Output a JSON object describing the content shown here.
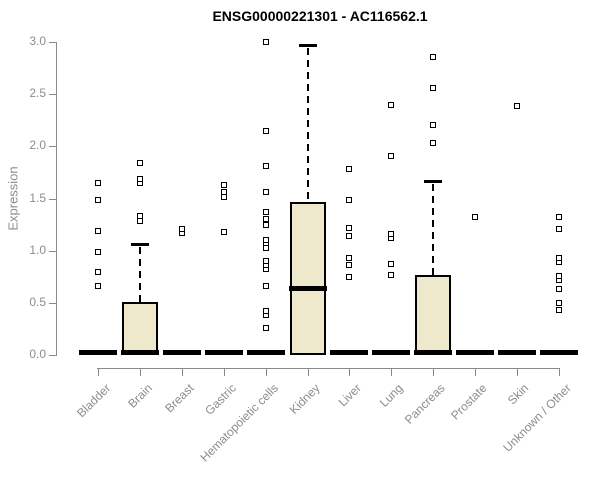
{
  "page": {
    "background": "#ffffff"
  },
  "chart_data": {
    "type": "boxplot",
    "title": "ENSG00000221301 - AC116562.1",
    "ylabel": "Expression",
    "ylim": [
      0,
      3.0
    ],
    "grid": false,
    "legend": "none",
    "yticks": [
      0.0,
      0.5,
      1.0,
      1.5,
      2.0,
      2.5,
      3.0
    ],
    "ytick_labels": [
      "0.0",
      "0.5",
      "1.0",
      "1.5",
      "2.0",
      "2.5",
      "3.0"
    ],
    "categories": [
      "Bladder",
      "Brain",
      "Breast",
      "Gastric",
      "Hematopoietic cells",
      "Kidney",
      "Liver",
      "Lung",
      "Pancreas",
      "Prostate",
      "Skin",
      "Unknown / Other"
    ],
    "series": [
      {
        "category": "Bladder",
        "q1": 0,
        "median": 0.02,
        "q3": 0.02,
        "whisker_low": 0,
        "whisker_high": 0.02,
        "outliers": [
          0.66,
          0.8,
          0.99,
          1.19,
          1.49,
          1.65
        ]
      },
      {
        "category": "Brain",
        "q1": 0,
        "median": 0.02,
        "q3": 0.51,
        "whisker_low": 0,
        "whisker_high": 1.06,
        "outliers": [
          1.28,
          1.33,
          1.65,
          1.69,
          1.84
        ]
      },
      {
        "category": "Breast",
        "q1": 0,
        "median": 0.02,
        "q3": 0.02,
        "whisker_low": 0,
        "whisker_high": 0.02,
        "outliers": [
          1.17,
          1.21
        ]
      },
      {
        "category": "Gastric",
        "q1": 0,
        "median": 0.02,
        "q3": 0.02,
        "whisker_low": 0,
        "whisker_high": 0.02,
        "outliers": [
          1.18,
          1.51,
          1.56,
          1.63
        ]
      },
      {
        "category": "Hematopoietic cells",
        "q1": 0,
        "median": 0.02,
        "q3": 0.02,
        "whisker_low": 0,
        "whisker_high": 0.02,
        "outliers": [
          0.26,
          0.38,
          0.42,
          0.66,
          0.82,
          0.86,
          0.9,
          1.03,
          1.07,
          1.1,
          1.25,
          1.3,
          1.37,
          1.56,
          1.81,
          2.15,
          3.0
        ]
      },
      {
        "category": "Kidney",
        "q1": 0,
        "median": 0.64,
        "q3": 1.47,
        "whisker_low": 0,
        "whisker_high": 2.97,
        "outliers": []
      },
      {
        "category": "Liver",
        "q1": 0,
        "median": 0.02,
        "q3": 0.02,
        "whisker_low": 0,
        "whisker_high": 0.02,
        "outliers": [
          0.75,
          0.86,
          0.93,
          1.14,
          1.22,
          1.49,
          1.78
        ]
      },
      {
        "category": "Lung",
        "q1": 0,
        "median": 0.02,
        "q3": 0.02,
        "whisker_low": 0,
        "whisker_high": 0.02,
        "outliers": [
          0.77,
          0.87,
          1.12,
          1.16,
          1.91,
          2.4
        ]
      },
      {
        "category": "Pancreas",
        "q1": 0,
        "median": 0.02,
        "q3": 0.77,
        "whisker_low": 0,
        "whisker_high": 1.67,
        "outliers": [
          2.03,
          2.2,
          2.56,
          2.86
        ]
      },
      {
        "category": "Prostate",
        "q1": 0,
        "median": 0.02,
        "q3": 0.02,
        "whisker_low": 0,
        "whisker_high": 0.02,
        "outliers": [
          1.32
        ]
      },
      {
        "category": "Skin",
        "q1": 0,
        "median": 0.02,
        "q3": 0.02,
        "whisker_low": 0,
        "whisker_high": 0.02,
        "outliers": [
          2.39
        ]
      },
      {
        "category": "Unknown / Other",
        "q1": 0,
        "median": 0.02,
        "q3": 0.02,
        "whisker_low": 0,
        "whisker_high": 0.02,
        "outliers": [
          0.43,
          0.5,
          0.63,
          0.72,
          0.76,
          0.89,
          0.93,
          1.21,
          1.32
        ]
      }
    ],
    "colors": {
      "box_fill": "#EEE8CD",
      "box_border": "#000000",
      "median": "#000000",
      "whisker": "#000000",
      "outlier_border": "#000000",
      "outlier_fill": "#ffffff",
      "axis": "#8a8a8a",
      "tick_text": "#8c8c8c",
      "title_text": "#000000"
    }
  }
}
